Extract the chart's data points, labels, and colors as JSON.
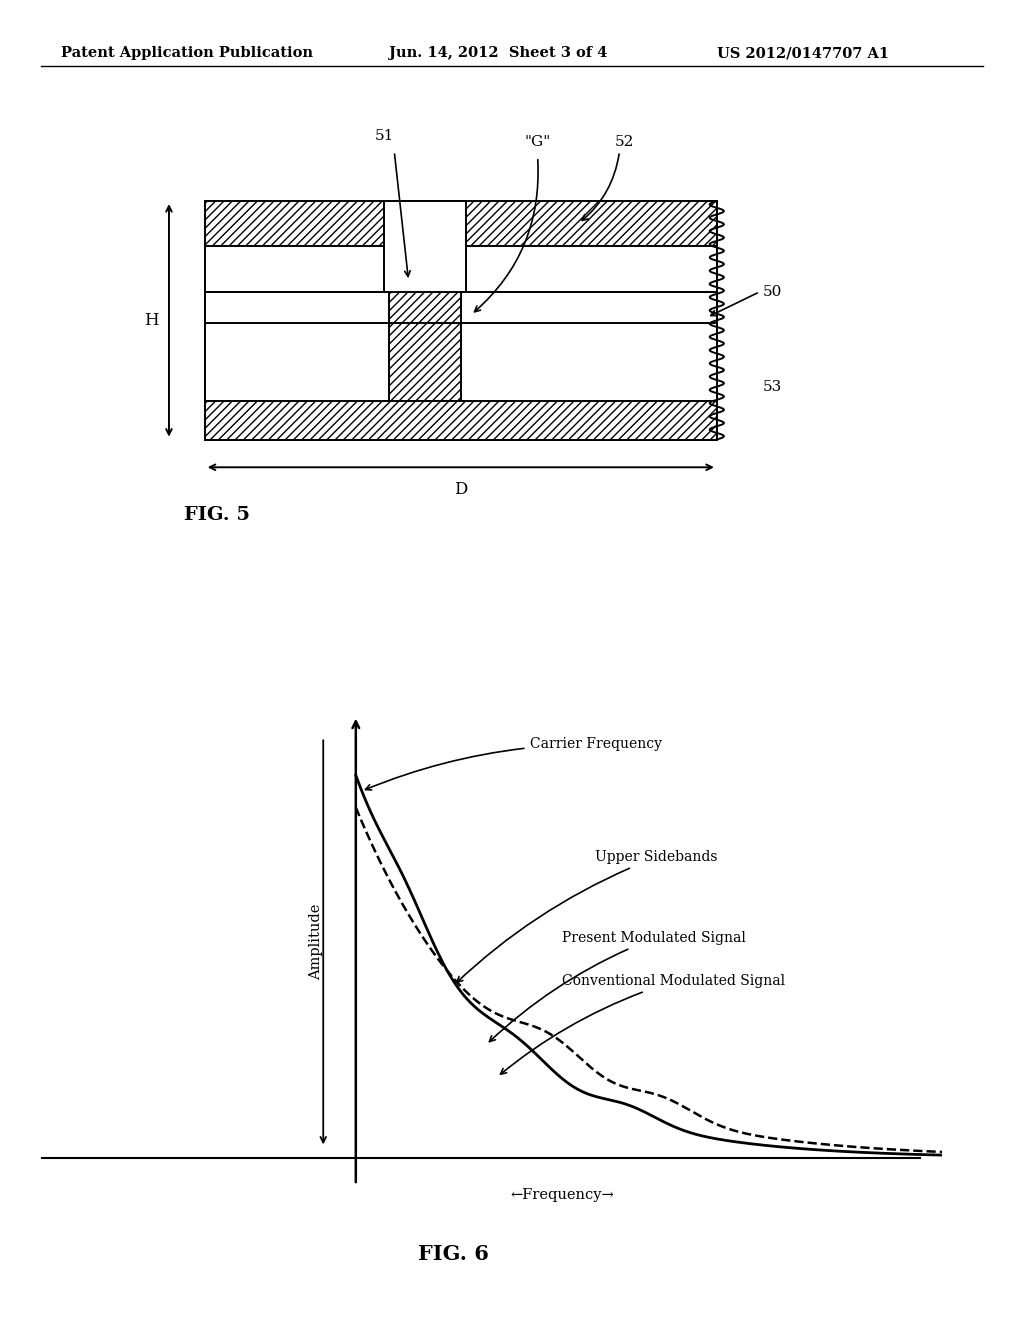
{
  "background_color": "#ffffff",
  "header_left": "Patent Application Publication",
  "header_center": "Jun. 14, 2012  Sheet 3 of 4",
  "header_right": "US 2012/0147707 A1",
  "fig5_label": "FIG. 5",
  "fig6_label": "FIG. 6",
  "label_51": "51",
  "label_52": "52",
  "label_50": "50",
  "label_53": "53",
  "label_G": "\"G\"",
  "label_H": "H",
  "label_D": "D",
  "annotation_carrier": "Carrier Frequency",
  "annotation_upper": "Upper Sidebands",
  "annotation_present": "Present Modulated Signal",
  "annotation_conventional": "Conventional Modulated Signal",
  "xlabel": "←Frequency→",
  "ylabel": "Amplitude"
}
